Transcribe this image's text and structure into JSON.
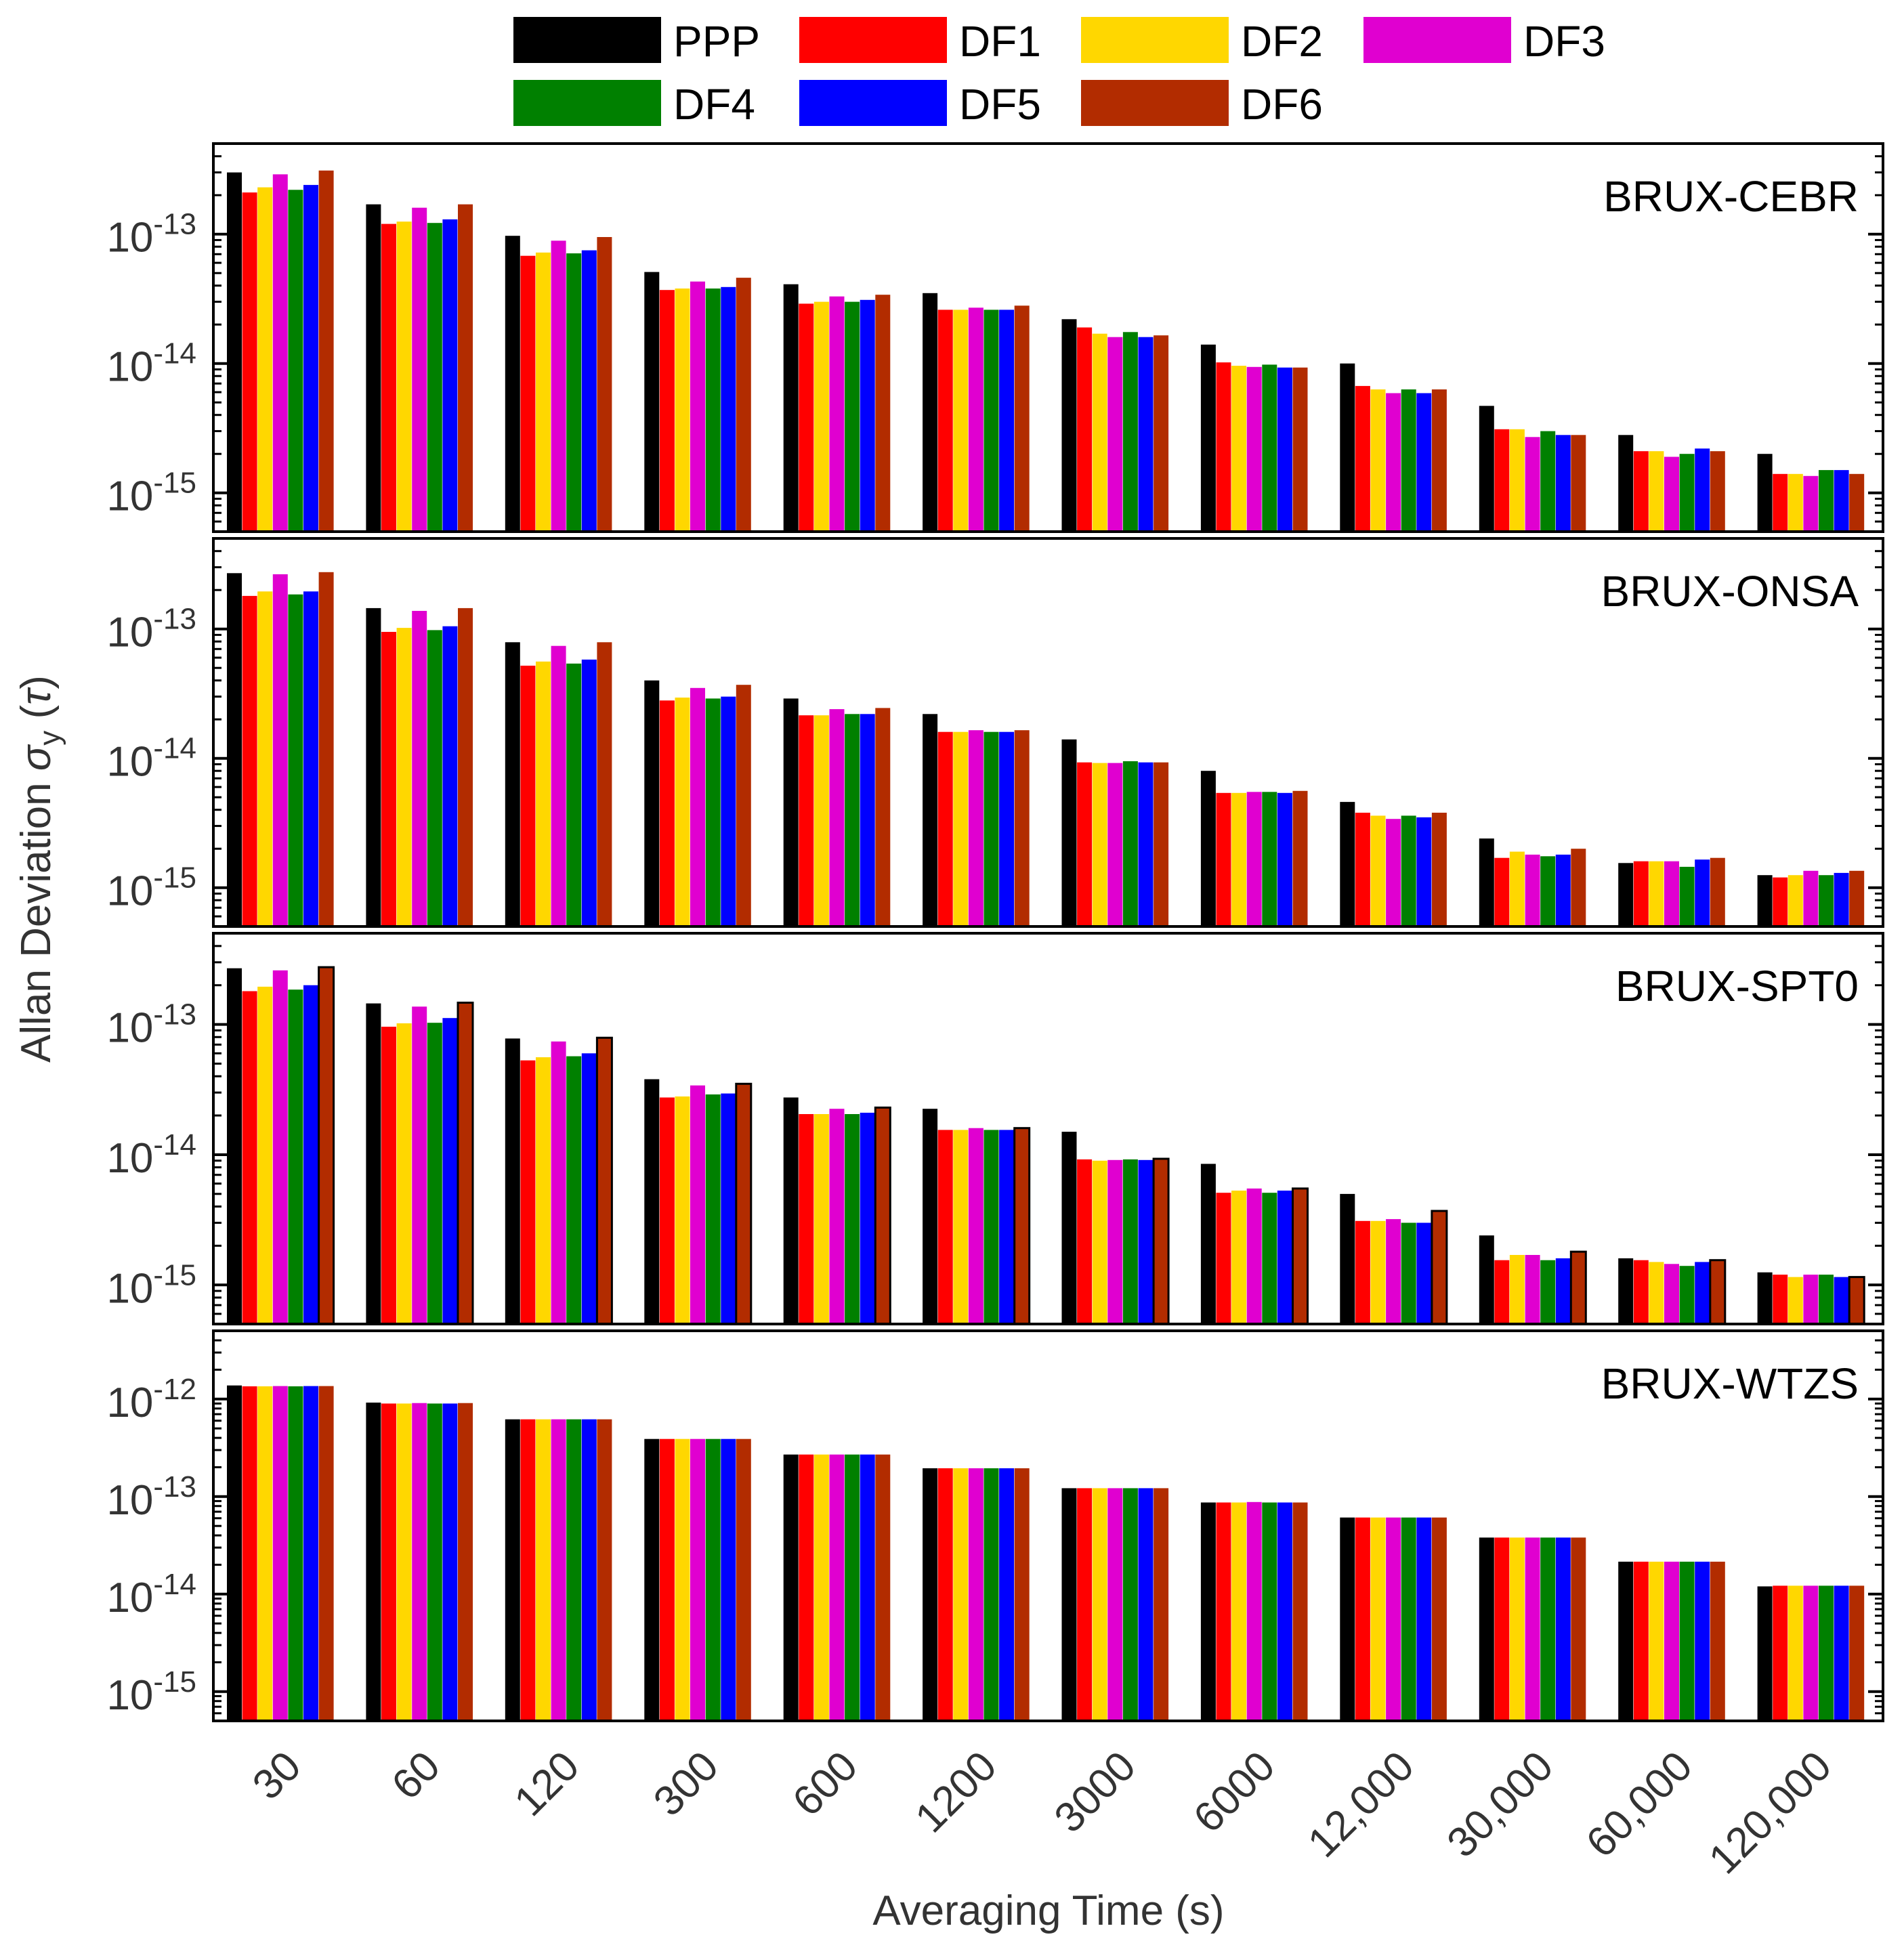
{
  "chart_data": {
    "type": "bar",
    "scale": "log",
    "xlabel": "Averaging Time (s)",
    "ylabel": {
      "main": "Allan Deviation ",
      "sigma": "σ",
      "sub": "y",
      "paren_open": " (",
      "tau": "τ",
      "paren_close": ")"
    },
    "categories": [
      "30",
      "60",
      "120",
      "300",
      "600",
      "1200",
      "3000",
      "6000",
      "12,000",
      "30,000",
      "60,000",
      "120,000"
    ],
    "legend": [
      {
        "name": "PPP",
        "color": "#000000"
      },
      {
        "name": "DF1",
        "color": "#ff0000"
      },
      {
        "name": "DF2",
        "color": "#ffd700"
      },
      {
        "name": "DF3",
        "color": "#e000d0"
      },
      {
        "name": "DF4",
        "color": "#008000"
      },
      {
        "name": "DF5",
        "color": "#0000ff"
      },
      {
        "name": "DF6",
        "color": "#b22c00"
      }
    ],
    "panels": [
      {
        "title": "BRUX-CEBR",
        "ylim_exp": [
          -15.3,
          -12.3
        ],
        "yticks": [
          {
            "exp": -13,
            "base": "10",
            "power": "-13"
          },
          {
            "exp": -14,
            "base": "10",
            "power": "-14"
          },
          {
            "exp": -15,
            "base": "10",
            "power": "-15"
          }
        ],
        "series": [
          {
            "name": "PPP",
            "values": [
              3e-13,
              1.7e-13,
              9.7e-14,
              5.1e-14,
              4.1e-14,
              3.5e-14,
              2.2e-14,
              1.4e-14,
              1e-14,
              4.7e-15,
              2.8e-15,
              2e-15
            ]
          },
          {
            "name": "DF1",
            "values": [
              2.1e-13,
              1.2e-13,
              6.8e-14,
              3.7e-14,
              2.9e-14,
              2.6e-14,
              1.9e-14,
              1.02e-14,
              6.7e-15,
              3.1e-15,
              2.1e-15,
              1.4e-15
            ]
          },
          {
            "name": "DF2",
            "values": [
              2.3e-13,
              1.25e-13,
              7.2e-14,
              3.8e-14,
              3e-14,
              2.6e-14,
              1.7e-14,
              9.6e-15,
              6.3e-15,
              3.1e-15,
              2.1e-15,
              1.4e-15
            ]
          },
          {
            "name": "DF3",
            "values": [
              2.9e-13,
              1.6e-13,
              8.9e-14,
              4.3e-14,
              3.3e-14,
              2.7e-14,
              1.6e-14,
              9.4e-15,
              5.9e-15,
              2.7e-15,
              1.9e-15,
              1.35e-15
            ]
          },
          {
            "name": "DF4",
            "values": [
              2.2e-13,
              1.22e-13,
              7.1e-14,
              3.8e-14,
              3e-14,
              2.6e-14,
              1.75e-14,
              9.8e-15,
              6.3e-15,
              3e-15,
              2e-15,
              1.5e-15
            ]
          },
          {
            "name": "DF5",
            "values": [
              2.4e-13,
              1.3e-13,
              7.5e-14,
              3.9e-14,
              3.1e-14,
              2.6e-14,
              1.6e-14,
              9.3e-15,
              5.9e-15,
              2.8e-15,
              2.2e-15,
              1.5e-15
            ]
          },
          {
            "name": "DF6",
            "values": [
              3.1e-13,
              1.7e-13,
              9.5e-14,
              4.6e-14,
              3.4e-14,
              2.8e-14,
              1.65e-14,
              9.3e-15,
              6.3e-15,
              2.8e-15,
              2.1e-15,
              1.4e-15
            ]
          }
        ]
      },
      {
        "title": "BRUX-ONSA",
        "ylim_exp": [
          -15.3,
          -12.3
        ],
        "yticks": [
          {
            "exp": -13,
            "base": "10",
            "power": "-13"
          },
          {
            "exp": -14,
            "base": "10",
            "power": "-14"
          },
          {
            "exp": -15,
            "base": "10",
            "power": "-15"
          }
        ],
        "series": [
          {
            "name": "PPP",
            "values": [
              2.7e-13,
              1.45e-13,
              7.9e-14,
              4e-14,
              2.9e-14,
              2.2e-14,
              1.4e-14,
              8e-15,
              4.6e-15,
              2.4e-15,
              1.55e-15,
              1.25e-15
            ]
          },
          {
            "name": "DF1",
            "values": [
              1.8e-13,
              9.5e-14,
              5.2e-14,
              2.8e-14,
              2.15e-14,
              1.6e-14,
              9.3e-15,
              5.4e-15,
              3.8e-15,
              1.7e-15,
              1.6e-15,
              1.2e-15
            ]
          },
          {
            "name": "DF2",
            "values": [
              1.95e-13,
              1.02e-13,
              5.6e-14,
              2.95e-14,
              2.15e-14,
              1.6e-14,
              9.2e-15,
              5.4e-15,
              3.6e-15,
              1.9e-15,
              1.6e-15,
              1.25e-15
            ]
          },
          {
            "name": "DF3",
            "values": [
              2.65e-13,
              1.38e-13,
              7.4e-14,
              3.5e-14,
              2.4e-14,
              1.65e-14,
              9.2e-15,
              5.5e-15,
              3.4e-15,
              1.8e-15,
              1.6e-15,
              1.35e-15
            ]
          },
          {
            "name": "DF4",
            "values": [
              1.85e-13,
              9.8e-14,
              5.4e-14,
              2.9e-14,
              2.2e-14,
              1.6e-14,
              9.5e-15,
              5.5e-15,
              3.6e-15,
              1.75e-15,
              1.45e-15,
              1.25e-15
            ]
          },
          {
            "name": "DF5",
            "values": [
              1.95e-13,
              1.05e-13,
              5.8e-14,
              3e-14,
              2.2e-14,
              1.6e-14,
              9.3e-15,
              5.4e-15,
              3.5e-15,
              1.8e-15,
              1.65e-15,
              1.3e-15
            ]
          },
          {
            "name": "DF6",
            "values": [
              2.75e-13,
              1.45e-13,
              7.9e-14,
              3.7e-14,
              2.45e-14,
              1.65e-14,
              9.3e-15,
              5.6e-15,
              3.8e-15,
              2e-15,
              1.7e-15,
              1.35e-15
            ]
          }
        ]
      },
      {
        "title": "BRUX-SPT0",
        "ylim_exp": [
          -15.3,
          -12.3
        ],
        "yticks": [
          {
            "exp": -13,
            "base": "10",
            "power": "-13"
          },
          {
            "exp": -14,
            "base": "10",
            "power": "-14"
          },
          {
            "exp": -15,
            "base": "10",
            "power": "-15"
          }
        ],
        "series": [
          {
            "name": "PPP",
            "values": [
              2.7e-13,
              1.45e-13,
              7.8e-14,
              3.8e-14,
              2.75e-14,
              2.25e-14,
              1.5e-14,
              8.5e-15,
              5e-15,
              2.4e-15,
              1.6e-15,
              1.25e-15
            ]
          },
          {
            "name": "DF1",
            "values": [
              1.8e-13,
              9.6e-14,
              5.3e-14,
              2.75e-14,
              2.05e-14,
              1.55e-14,
              9.2e-15,
              5.1e-15,
              3.1e-15,
              1.55e-15,
              1.55e-15,
              1.2e-15
            ]
          },
          {
            "name": "DF2",
            "values": [
              1.95e-13,
              1.02e-13,
              5.6e-14,
              2.8e-14,
              2.05e-14,
              1.55e-14,
              9e-15,
              5.3e-15,
              3.1e-15,
              1.7e-15,
              1.5e-15,
              1.15e-15
            ]
          },
          {
            "name": "DF3",
            "values": [
              2.6e-13,
              1.37e-13,
              7.4e-14,
              3.4e-14,
              2.25e-14,
              1.6e-14,
              9.1e-15,
              5.5e-15,
              3.2e-15,
              1.7e-15,
              1.45e-15,
              1.2e-15
            ]
          },
          {
            "name": "DF4",
            "values": [
              1.85e-13,
              1.03e-13,
              5.7e-14,
              2.9e-14,
              2.05e-14,
              1.55e-14,
              9.2e-15,
              5.1e-15,
              3e-15,
              1.55e-15,
              1.4e-15,
              1.2e-15
            ]
          },
          {
            "name": "DF5",
            "values": [
              2e-13,
              1.12e-13,
              6e-14,
              2.95e-14,
              2.1e-14,
              1.55e-14,
              9.1e-15,
              5.3e-15,
              3e-15,
              1.6e-15,
              1.5e-15,
              1.15e-15
            ]
          },
          {
            "name": "DF6",
            "values": [
              2.75e-13,
              1.47e-13,
              7.9e-14,
              3.5e-14,
              2.3e-14,
              1.6e-14,
              9.3e-15,
              5.5e-15,
              3.7e-15,
              1.8e-15,
              1.55e-15,
              1.15e-15
            ]
          }
        ]
      },
      {
        "title": "BRUX-WTZS",
        "ylim_exp": [
          -15.3,
          -11.3
        ],
        "yticks": [
          {
            "exp": -12,
            "base": "10",
            "power": "-12"
          },
          {
            "exp": -13,
            "base": "10",
            "power": "-13"
          },
          {
            "exp": -14,
            "base": "10",
            "power": "-14"
          },
          {
            "exp": -15,
            "base": "10",
            "power": "-15"
          }
        ],
        "series": [
          {
            "name": "PPP",
            "values": [
              1.38e-12,
              9.2e-13,
              6.2e-13,
              3.9e-13,
              2.7e-13,
              1.95e-13,
              1.22e-13,
              8.7e-14,
              6.1e-14,
              3.8e-14,
              2.15e-14,
              1.2e-14
            ]
          },
          {
            "name": "DF1",
            "values": [
              1.35e-12,
              9e-13,
              6.2e-13,
              3.9e-13,
              2.7e-13,
              1.95e-13,
              1.22e-13,
              8.7e-14,
              6.1e-14,
              3.8e-14,
              2.15e-14,
              1.22e-14
            ]
          },
          {
            "name": "DF2",
            "values": [
              1.35e-12,
              9e-13,
              6.2e-13,
              3.9e-13,
              2.7e-13,
              1.95e-13,
              1.22e-13,
              8.7e-14,
              6.1e-14,
              3.8e-14,
              2.15e-14,
              1.22e-14
            ]
          },
          {
            "name": "DF3",
            "values": [
              1.36e-12,
              9.1e-13,
              6.2e-13,
              3.9e-13,
              2.7e-13,
              1.95e-13,
              1.22e-13,
              8.8e-14,
              6.1e-14,
              3.8e-14,
              2.15e-14,
              1.22e-14
            ]
          },
          {
            "name": "DF4",
            "values": [
              1.35e-12,
              9e-13,
              6.2e-13,
              3.9e-13,
              2.7e-13,
              1.95e-13,
              1.22e-13,
              8.7e-14,
              6.1e-14,
              3.8e-14,
              2.15e-14,
              1.22e-14
            ]
          },
          {
            "name": "DF5",
            "values": [
              1.36e-12,
              9e-13,
              6.2e-13,
              3.9e-13,
              2.7e-13,
              1.95e-13,
              1.22e-13,
              8.7e-14,
              6.1e-14,
              3.8e-14,
              2.15e-14,
              1.22e-14
            ]
          },
          {
            "name": "DF6",
            "values": [
              1.36e-12,
              9.1e-13,
              6.2e-13,
              3.9e-13,
              2.7e-13,
              1.95e-13,
              1.22e-13,
              8.7e-14,
              6.1e-14,
              3.8e-14,
              2.15e-14,
              1.22e-14
            ]
          }
        ]
      }
    ]
  }
}
